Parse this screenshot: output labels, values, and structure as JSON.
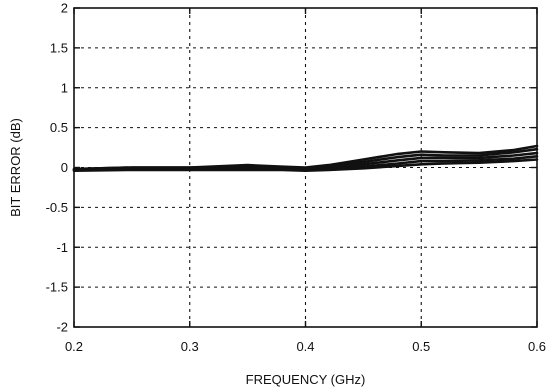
{
  "chart_data": {
    "type": "line",
    "title": "",
    "xlabel": "FREQUENCY (GHz)",
    "ylabel": "BIT ERROR (dB)",
    "xlim": [
      0.2,
      0.6
    ],
    "ylim": [
      -2,
      2
    ],
    "x_ticks": [
      0.2,
      0.3,
      0.4,
      0.5,
      0.6
    ],
    "y_ticks": [
      -2,
      -1.5,
      -1,
      -0.5,
      0,
      0.5,
      1,
      1.5,
      2
    ],
    "x_tick_labels": [
      "0.2",
      "0.3",
      "0.4",
      "0.5",
      "0.6"
    ],
    "y_tick_labels": [
      "-2",
      "-1.5",
      "-1",
      "-0.5",
      "0",
      "0.5",
      "1",
      "1.5",
      "2"
    ],
    "grid": true,
    "series": [
      {
        "x": [
          0.2,
          0.25,
          0.3,
          0.35,
          0.38,
          0.4,
          0.42,
          0.45,
          0.48,
          0.5,
          0.52,
          0.55,
          0.58,
          0.6
        ],
        "values": [
          -0.02,
          0.0,
          0.0,
          0.03,
          0.01,
          0.0,
          0.03,
          0.1,
          0.17,
          0.2,
          0.19,
          0.18,
          0.22,
          0.27
        ]
      },
      {
        "x": [
          0.2,
          0.25,
          0.3,
          0.35,
          0.38,
          0.4,
          0.42,
          0.45,
          0.48,
          0.5,
          0.52,
          0.55,
          0.58,
          0.6
        ],
        "values": [
          -0.02,
          0.0,
          0.0,
          0.01,
          0.0,
          -0.01,
          0.02,
          0.07,
          0.13,
          0.16,
          0.15,
          0.15,
          0.19,
          0.23
        ]
      },
      {
        "x": [
          0.2,
          0.25,
          0.3,
          0.35,
          0.38,
          0.4,
          0.42,
          0.45,
          0.48,
          0.5,
          0.52,
          0.55,
          0.58,
          0.6
        ],
        "values": [
          -0.03,
          -0.01,
          -0.01,
          0.0,
          -0.01,
          -0.02,
          0.0,
          0.04,
          0.09,
          0.12,
          0.12,
          0.12,
          0.15,
          0.18
        ]
      },
      {
        "x": [
          0.2,
          0.25,
          0.3,
          0.35,
          0.38,
          0.4,
          0.42,
          0.45,
          0.48,
          0.5,
          0.52,
          0.55,
          0.58,
          0.6
        ],
        "values": [
          -0.03,
          -0.02,
          -0.02,
          -0.02,
          -0.02,
          -0.03,
          -0.02,
          0.01,
          0.05,
          0.08,
          0.08,
          0.09,
          0.11,
          0.14
        ]
      },
      {
        "x": [
          0.2,
          0.25,
          0.3,
          0.35,
          0.38,
          0.4,
          0.42,
          0.45,
          0.48,
          0.5,
          0.52,
          0.55,
          0.58,
          0.6
        ],
        "values": [
          -0.04,
          -0.03,
          -0.03,
          -0.03,
          -0.03,
          -0.04,
          -0.03,
          -0.01,
          0.02,
          0.04,
          0.05,
          0.06,
          0.08,
          0.1
        ]
      }
    ]
  }
}
